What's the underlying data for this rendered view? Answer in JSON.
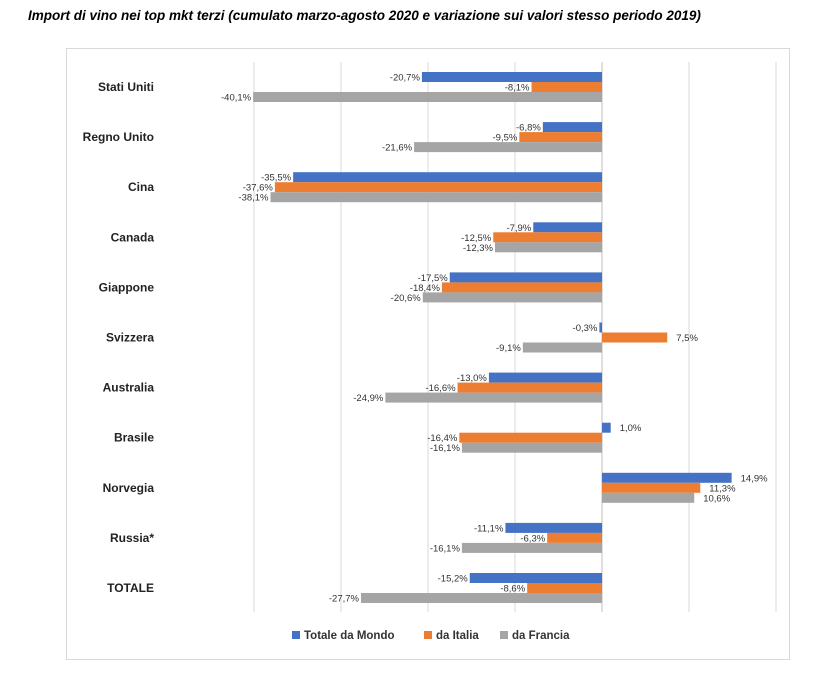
{
  "chart_data": {
    "type": "bar",
    "orientation": "horizontal",
    "title": "Import di vino nei top mkt terzi (cumulato marzo-agosto 2020 e variazione sui valori stesso periodo 2019)",
    "xlabel": "",
    "ylabel": "",
    "xlim": [
      -40,
      20
    ],
    "grid": true,
    "legend_position": "bottom",
    "categories": [
      "Stati Uniti",
      "Regno Unito",
      "Cina",
      "Canada",
      "Giappone",
      "Svizzera",
      "Australia",
      "Brasile",
      "Norvegia",
      "Russia*",
      "TOTALE"
    ],
    "series": [
      {
        "name": "Totale da Mondo",
        "color": "#4472c4",
        "values": [
          -20.7,
          -6.8,
          -35.5,
          -7.9,
          -17.5,
          -0.3,
          -13.0,
          1.0,
          14.9,
          -11.1,
          -15.2
        ],
        "labels": [
          "-20,7%",
          "-6,8%",
          "-35,5%",
          "-7,9%",
          "-17,5%",
          "-0,3%",
          "-13,0%",
          "1,0%",
          "14,9%",
          "-11,1%",
          "-15,2%"
        ]
      },
      {
        "name": "da Italia",
        "color": "#ed7d31",
        "values": [
          -8.1,
          -9.5,
          -37.6,
          -12.5,
          -18.4,
          7.5,
          -16.6,
          -16.4,
          11.3,
          -6.3,
          -8.6
        ],
        "labels": [
          "-8,1%",
          "-9,5%",
          "-37,6%",
          "-12,5%",
          "-18,4%",
          "7,5%",
          "-16,6%",
          "-16,4%",
          "11,3%",
          "-6,3%",
          "-8,6%"
        ]
      },
      {
        "name": "da Francia",
        "color": "#a5a5a5",
        "values": [
          -40.1,
          -21.6,
          -38.1,
          -12.3,
          -20.6,
          -9.1,
          -24.9,
          -16.1,
          10.6,
          -16.1,
          -27.7
        ],
        "labels": [
          "-40,1%",
          "-21,6%",
          "-38,1%",
          "-12,3%",
          "-20,6%",
          "-9,1%",
          "-24,9%",
          "-16,1%",
          "10,6%",
          "-16,1%",
          "-27,7%"
        ]
      }
    ]
  }
}
